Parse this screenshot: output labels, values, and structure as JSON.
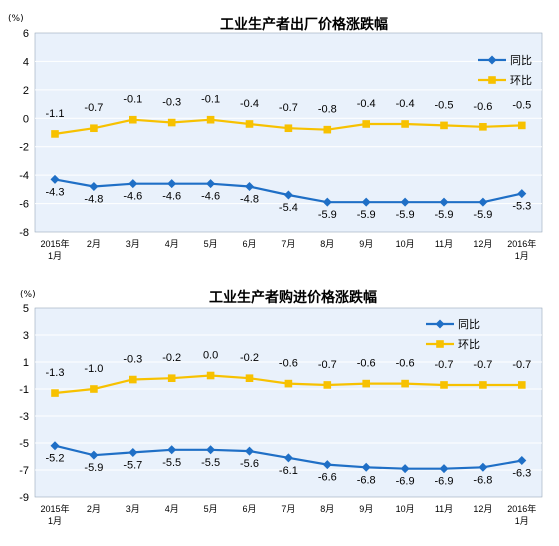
{
  "colors": {
    "yoy": "#1f6fc6",
    "mom": "#f7c100",
    "plot_bg": "#e9f1fb",
    "grid": "#ffffff"
  },
  "charts": [
    {
      "unit": "(%)",
      "title": "工业生产者出厂价格涨跌幅",
      "legend": [
        "同比",
        "环比"
      ]
    },
    {
      "unit": "(%)",
      "title": "工业生产者购进价格涨跌幅",
      "legend": [
        "同比",
        "环比"
      ]
    }
  ],
  "chart_data": [
    {
      "type": "line",
      "title": "工业生产者出厂价格涨跌幅",
      "ylabel": "(%)",
      "categories": [
        "2015年\n1月",
        "2月",
        "3月",
        "4月",
        "5月",
        "6月",
        "7月",
        "8月",
        "9月",
        "10月",
        "11月",
        "12月",
        "2016年\n1月"
      ],
      "ylim": [
        -8,
        6
      ],
      "yticks": [
        6,
        4,
        2,
        0,
        -2,
        -4,
        -6,
        -8
      ],
      "legend_position": "top-right",
      "series": [
        {
          "name": "同比",
          "values": [
            -4.3,
            -4.8,
            -4.6,
            -4.6,
            -4.6,
            -4.8,
            -5.4,
            -5.9,
            -5.9,
            -5.9,
            -5.9,
            -5.9,
            -5.3
          ]
        },
        {
          "name": "环比",
          "values": [
            -1.1,
            -0.7,
            -0.1,
            -0.3,
            -0.1,
            -0.4,
            -0.7,
            -0.8,
            -0.4,
            -0.4,
            -0.5,
            -0.6,
            -0.5
          ]
        }
      ]
    },
    {
      "type": "line",
      "title": "工业生产者购进价格涨跌幅",
      "ylabel": "(%)",
      "categories": [
        "2015年\n1月",
        "2月",
        "3月",
        "4月",
        "5月",
        "6月",
        "7月",
        "8月",
        "9月",
        "10月",
        "11月",
        "12月",
        "2016年\n1月"
      ],
      "ylim": [
        -9,
        5
      ],
      "yticks": [
        5,
        3,
        1,
        -1,
        -3,
        -5,
        -7,
        -9
      ],
      "legend_position": "top-right",
      "series": [
        {
          "name": "同比",
          "values": [
            -5.2,
            -5.9,
            -5.7,
            -5.5,
            -5.5,
            -5.6,
            -6.1,
            -6.6,
            -6.8,
            -6.9,
            -6.9,
            -6.8,
            -6.3
          ]
        },
        {
          "name": "环比",
          "values": [
            -1.3,
            -1.0,
            -0.3,
            -0.2,
            0.0,
            -0.2,
            -0.6,
            -0.7,
            -0.6,
            -0.6,
            -0.7,
            -0.7,
            -0.7
          ]
        }
      ]
    }
  ]
}
